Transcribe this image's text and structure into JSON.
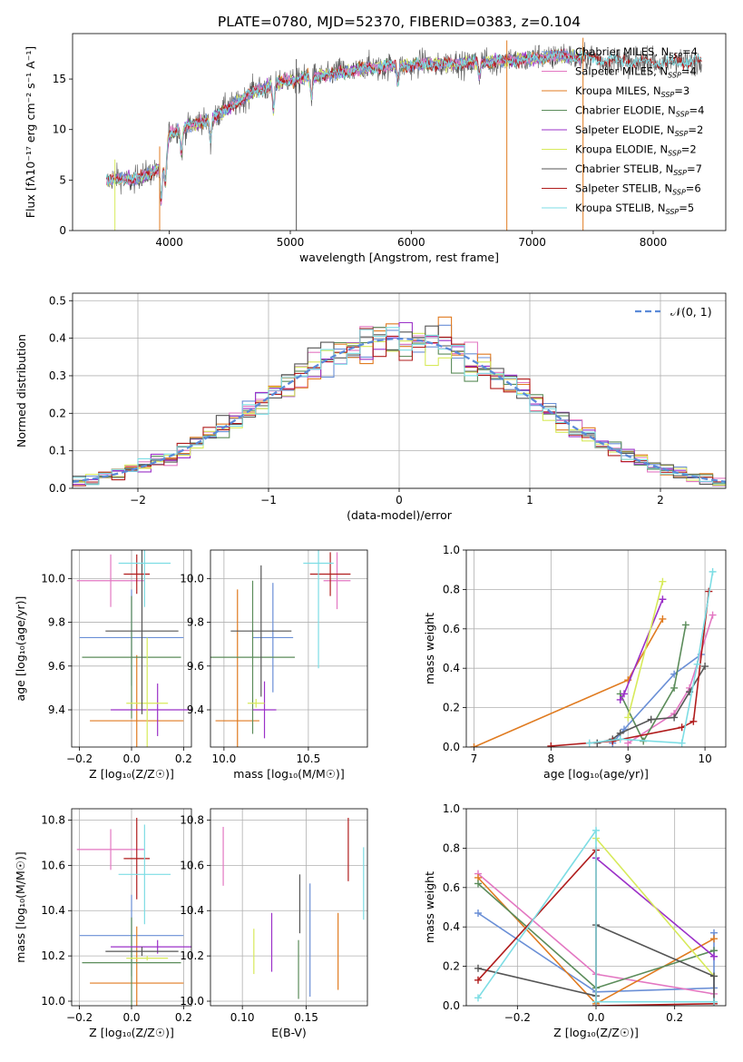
{
  "figure_title": "PLATE=0780, MJD=52370, FIBERID=0383, z=0.104",
  "colors": {
    "Chabrier MILES": "#6a8fd6",
    "Salpeter MILES": "#e377c2",
    "Kroupa MILES": "#e07b20",
    "Chabrier ELODIE": "#5b8c5a",
    "Salpeter ELODIE": "#9b30c8",
    "Kroupa ELODIE": "#d7ea5a",
    "Chabrier STELIB": "#555555",
    "Salpeter STELIB": "#b01c1c",
    "Kroupa STELIB": "#7ddde4"
  },
  "chart_data": [
    {
      "id": "spectrum",
      "type": "line",
      "xlabel": "wavelength [Angstrom, rest frame]",
      "ylabel": "Flux [fλ10⁻¹⁷ erg cm⁻² s⁻¹ A⁻¹]",
      "xlim": [
        3200,
        8600
      ],
      "ylim": [
        0,
        19.5
      ],
      "xticks": [
        4000,
        5000,
        6000,
        7000,
        8000
      ],
      "yticks": [
        0,
        5,
        10,
        15
      ],
      "grid": false,
      "legend_position": "top-right",
      "legend": [
        {
          "model": "Chabrier MILES",
          "label": "Chabrier MILES, N",
          "sub": "SSP",
          "tail": "=4"
        },
        {
          "model": "Salpeter MILES",
          "label": "Salpeter MILES, N",
          "sub": "SSP",
          "tail": "=4"
        },
        {
          "model": "Kroupa MILES",
          "label": "Kroupa MILES, N",
          "sub": "SSP",
          "tail": "=3"
        },
        {
          "model": "Chabrier ELODIE",
          "label": "Chabrier ELODIE, N",
          "sub": "SSP",
          "tail": "=4"
        },
        {
          "model": "Salpeter ELODIE",
          "label": "Salpeter ELODIE, N",
          "sub": "SSP",
          "tail": "=2"
        },
        {
          "model": "Kroupa ELODIE",
          "label": "Kroupa ELODIE, N",
          "sub": "SSP",
          "tail": "=2"
        },
        {
          "model": "Chabrier STELIB",
          "label": "Chabrier STELIB, N",
          "sub": "SSP",
          "tail": "=7"
        },
        {
          "model": "Salpeter STELIB",
          "label": "Salpeter STELIB, N",
          "sub": "SSP",
          "tail": "=6"
        },
        {
          "model": "Kroupa STELIB",
          "label": "Kroupa STELIB, N",
          "sub": "SSP",
          "tail": "=5"
        }
      ],
      "continuum_nodes": [
        [
          3480,
          4.8
        ],
        [
          3600,
          5.2
        ],
        [
          3700,
          5.0
        ],
        [
          3800,
          5.4
        ],
        [
          3900,
          6.2
        ],
        [
          3950,
          6.5
        ],
        [
          4000,
          9.5
        ],
        [
          4100,
          10.2
        ],
        [
          4300,
          10.8
        ],
        [
          4500,
          12.2
        ],
        [
          4700,
          13.8
        ],
        [
          4900,
          14.6
        ],
        [
          5100,
          15.1
        ],
        [
          5400,
          15.6
        ],
        [
          5700,
          16.2
        ],
        [
          6000,
          16.4
        ],
        [
          6300,
          16.5
        ],
        [
          6600,
          16.7
        ],
        [
          6900,
          16.9
        ],
        [
          7200,
          17.3
        ],
        [
          7500,
          17.0
        ],
        [
          7800,
          16.7
        ],
        [
          8100,
          16.6
        ],
        [
          8400,
          16.8
        ]
      ],
      "absorption_lines": [
        {
          "x": 3933,
          "depth": 3.5
        },
        {
          "x": 3968,
          "depth": 3.0
        },
        {
          "x": 4101,
          "depth": 2.5
        },
        {
          "x": 4340,
          "depth": 2.0
        },
        {
          "x": 4861,
          "depth": 2.5
        },
        {
          "x": 5175,
          "depth": 2.0
        },
        {
          "x": 5890,
          "depth": 1.8
        },
        {
          "x": 6563,
          "depth": 1.5
        },
        {
          "x": 8542,
          "depth": 1.5
        }
      ],
      "spikes": [
        {
          "x": 3550,
          "series": "Kroupa ELODIE"
        },
        {
          "x": 3920,
          "series": "Kroupa MILES"
        },
        {
          "x": 5050,
          "series": "Chabrier STELIB"
        },
        {
          "x": 6790,
          "series": "Kroupa MILES"
        },
        {
          "x": 7420,
          "series": "Kroupa MILES"
        }
      ]
    },
    {
      "id": "residuals",
      "type": "histogram",
      "xlabel": "(data-model)/error",
      "ylabel": "Normed distribution",
      "xlim": [
        -2.5,
        2.5
      ],
      "ylim": [
        0,
        0.52
      ],
      "xticks": [
        -2,
        -1,
        0,
        1,
        2
      ],
      "yticks": [
        0.0,
        0.1,
        0.2,
        0.3,
        0.4,
        0.5
      ],
      "grid": true,
      "legend_position": "top-right",
      "reference_label": "𝒩(0, 1)",
      "reference_color": "#5b8ad8",
      "bin_width": 0.1
    },
    {
      "id": "age-vs-Z",
      "type": "errorbar",
      "xlabel": "Z [log₁₀(Z/Z☉)]",
      "ylabel": "age  [log₁₀(age/yr)]",
      "xlim": [
        -0.23,
        0.23
      ],
      "ylim": [
        9.23,
        10.13
      ],
      "xticks": [
        -0.2,
        0.0,
        0.2
      ],
      "yticks": [
        9.4,
        9.6,
        9.8,
        10.0
      ],
      "grid": true,
      "points": [
        {
          "series": "Chabrier MILES",
          "x": 0.0,
          "xerr": 0.2,
          "y": 9.73,
          "yerr": 0.22
        },
        {
          "series": "Salpeter MILES",
          "x": -0.08,
          "xerr": 0.13,
          "y": 9.99,
          "yerr": 0.12
        },
        {
          "series": "Kroupa MILES",
          "x": 0.02,
          "xerr": 0.18,
          "y": 9.35,
          "yerr": 0.3
        },
        {
          "series": "Chabrier ELODIE",
          "x": 0.0,
          "xerr": 0.19,
          "y": 9.64,
          "yerr": 0.28
        },
        {
          "series": "Salpeter ELODIE",
          "x": 0.1,
          "xerr": 0.18,
          "y": 9.4,
          "yerr": 0.12
        },
        {
          "series": "Kroupa ELODIE",
          "x": 0.06,
          "xerr": 0.08,
          "y": 9.43,
          "yerr": 0.3
        },
        {
          "series": "Chabrier STELIB",
          "x": 0.04,
          "xerr": 0.14,
          "y": 9.76,
          "yerr": 0.38
        },
        {
          "series": "Salpeter STELIB",
          "x": 0.02,
          "xerr": 0.05,
          "y": 10.02,
          "yerr": 0.09
        },
        {
          "series": "Kroupa STELIB",
          "x": 0.05,
          "xerr": 0.1,
          "y": 10.07,
          "yerr": 0.2
        }
      ]
    },
    {
      "id": "age-vs-mass",
      "type": "errorbar",
      "xlabel": "mass [log₁₀(M/M☉)]",
      "ylabel": "",
      "xlim": [
        9.92,
        10.85
      ],
      "ylim": [
        9.23,
        10.13
      ],
      "xticks": [
        10.0,
        10.5
      ],
      "yticks": [
        9.4,
        9.6,
        9.8,
        10.0
      ],
      "grid": true,
      "points": [
        {
          "series": "Chabrier MILES",
          "x": 10.29,
          "xerr": 0.12,
          "y": 9.73,
          "yerr": 0.25
        },
        {
          "series": "Salpeter MILES",
          "x": 10.67,
          "xerr": 0.08,
          "y": 9.99,
          "yerr": 0.13
        },
        {
          "series": "Kroupa MILES",
          "x": 10.08,
          "xerr": 0.13,
          "y": 9.35,
          "yerr": 0.6
        },
        {
          "series": "Chabrier ELODIE",
          "x": 10.17,
          "xerr": 0.25,
          "y": 9.64,
          "yerr": 0.35
        },
        {
          "series": "Salpeter ELODIE",
          "x": 10.24,
          "xerr": 0.07,
          "y": 9.4,
          "yerr": 0.13
        },
        {
          "series": "Kroupa ELODIE",
          "x": 10.19,
          "xerr": 0.05,
          "y": 9.43,
          "yerr": 0.02
        },
        {
          "series": "Chabrier STELIB",
          "x": 10.22,
          "xerr": 0.18,
          "y": 9.76,
          "yerr": 0.3
        },
        {
          "series": "Salpeter STELIB",
          "x": 10.63,
          "xerr": 0.12,
          "y": 10.02,
          "yerr": 0.1
        },
        {
          "series": "Kroupa STELIB",
          "x": 10.56,
          "xerr": 0.09,
          "y": 10.07,
          "yerr": 0.48
        }
      ]
    },
    {
      "id": "weight-vs-age",
      "type": "line",
      "xlabel": "age  [log₁₀(age/yr)]",
      "ylabel": "mass weight",
      "xlim": [
        6.9,
        10.27
      ],
      "ylim": [
        0,
        1.0
      ],
      "xticks": [
        7,
        8,
        9,
        10
      ],
      "yticks": [
        0.0,
        0.2,
        0.4,
        0.6,
        0.8,
        1.0
      ],
      "grid": true,
      "series": [
        {
          "name": "Chabrier MILES",
          "points": [
            [
              8.8,
              0.02
            ],
            [
              8.95,
              0.09
            ],
            [
              9.6,
              0.37
            ],
            [
              9.95,
              0.47
            ]
          ]
        },
        {
          "name": "Salpeter MILES",
          "points": [
            [
              9.0,
              0.02
            ],
            [
              9.6,
              0.17
            ],
            [
              9.8,
              0.3
            ],
            [
              10.1,
              0.67
            ]
          ]
        },
        {
          "name": "Kroupa MILES",
          "points": [
            [
              7.0,
              0.0
            ],
            [
              9.0,
              0.34
            ],
            [
              9.45,
              0.65
            ]
          ]
        },
        {
          "name": "Chabrier ELODIE",
          "points": [
            [
              8.9,
              0.27
            ],
            [
              9.2,
              0.03
            ],
            [
              9.6,
              0.3
            ],
            [
              9.75,
              0.62
            ]
          ]
        },
        {
          "name": "Salpeter ELODIE",
          "points": [
            [
              8.9,
              0.24
            ],
            [
              8.95,
              0.27
            ],
            [
              9.45,
              0.75
            ]
          ]
        },
        {
          "name": "Kroupa ELODIE",
          "points": [
            [
              9.0,
              0.15
            ],
            [
              9.45,
              0.84
            ]
          ]
        },
        {
          "name": "Chabrier STELIB",
          "points": [
            [
              8.6,
              0.02
            ],
            [
              8.8,
              0.04
            ],
            [
              8.9,
              0.07
            ],
            [
              9.3,
              0.14
            ],
            [
              9.6,
              0.15
            ],
            [
              9.8,
              0.28
            ],
            [
              10.0,
              0.41
            ]
          ]
        },
        {
          "name": "Salpeter STELIB",
          "points": [
            [
              8.0,
              0.005
            ],
            [
              8.8,
              0.03
            ],
            [
              9.7,
              0.1
            ],
            [
              9.85,
              0.13
            ],
            [
              10.05,
              0.79
            ]
          ]
        },
        {
          "name": "Kroupa STELIB",
          "points": [
            [
              8.5,
              0.02
            ],
            [
              8.9,
              0.04
            ],
            [
              9.7,
              0.02
            ],
            [
              9.9,
              0.42
            ],
            [
              10.1,
              0.89
            ]
          ]
        }
      ]
    },
    {
      "id": "mass-vs-Z",
      "type": "errorbar",
      "xlabel": "Z [log₁₀(Z/Z☉)]",
      "ylabel": "mass [log₁₀(M/M☉)]",
      "xlim": [
        -0.23,
        0.23
      ],
      "ylim": [
        9.98,
        10.85
      ],
      "xticks": [
        -0.2,
        0.0,
        0.2
      ],
      "yticks": [
        10.0,
        10.2,
        10.4,
        10.6,
        10.8
      ],
      "grid": true,
      "points": [
        {
          "series": "Chabrier MILES",
          "x": 0.0,
          "xerr": 0.2,
          "y": 10.29,
          "yerr": 0.18
        },
        {
          "series": "Salpeter MILES",
          "x": -0.08,
          "xerr": 0.13,
          "y": 10.67,
          "yerr": 0.09
        },
        {
          "series": "Kroupa MILES",
          "x": 0.02,
          "xerr": 0.18,
          "y": 10.08,
          "yerr": 0.25
        },
        {
          "series": "Chabrier ELODIE",
          "x": 0.0,
          "xerr": 0.19,
          "y": 10.17,
          "yerr": 0.2
        },
        {
          "series": "Salpeter ELODIE",
          "x": 0.1,
          "xerr": 0.18,
          "y": 10.24,
          "yerr": 0.03
        },
        {
          "series": "Kroupa ELODIE",
          "x": 0.06,
          "xerr": 0.08,
          "y": 10.19,
          "yerr": 0.01
        },
        {
          "series": "Chabrier STELIB",
          "x": 0.04,
          "xerr": 0.14,
          "y": 10.22,
          "yerr": 0.02
        },
        {
          "series": "Salpeter STELIB",
          "x": 0.02,
          "xerr": 0.05,
          "y": 10.63,
          "yerr": 0.18
        },
        {
          "series": "Kroupa STELIB",
          "x": 0.05,
          "xerr": 0.1,
          "y": 10.56,
          "yerr": 0.22
        }
      ]
    },
    {
      "id": "mass-vs-ebv",
      "type": "errorbar",
      "xlabel": "E(B-V)",
      "ylabel": "",
      "xlim": [
        0.075,
        0.198
      ],
      "ylim": [
        9.98,
        10.85
      ],
      "xticks": [
        0.1,
        0.15
      ],
      "yticks": [
        10.0,
        10.2,
        10.4,
        10.6,
        10.8
      ],
      "grid": true,
      "points": [
        {
          "series": "Chabrier MILES",
          "x": 0.153,
          "xerr": 0,
          "y": 10.27,
          "yerr": 0.25
        },
        {
          "series": "Salpeter MILES",
          "x": 0.085,
          "xerr": 0,
          "y": 10.64,
          "yerr": 0.13
        },
        {
          "series": "Kroupa MILES",
          "x": 0.175,
          "xerr": 0,
          "y": 10.22,
          "yerr": 0.17
        },
        {
          "series": "Chabrier ELODIE",
          "x": 0.144,
          "xerr": 0,
          "y": 10.14,
          "yerr": 0.13
        },
        {
          "series": "Salpeter ELODIE",
          "x": 0.123,
          "xerr": 0,
          "y": 10.26,
          "yerr": 0.13
        },
        {
          "series": "Kroupa ELODIE",
          "x": 0.109,
          "xerr": 0,
          "y": 10.22,
          "yerr": 0.1
        },
        {
          "series": "Chabrier STELIB",
          "x": 0.145,
          "xerr": 0,
          "y": 10.43,
          "yerr": 0.13
        },
        {
          "series": "Salpeter STELIB",
          "x": 0.183,
          "xerr": 0,
          "y": 10.67,
          "yerr": 0.14
        },
        {
          "series": "Kroupa STELIB",
          "x": 0.195,
          "xerr": 0,
          "y": 10.52,
          "yerr": 0.16
        }
      ]
    },
    {
      "id": "weight-vs-Z",
      "type": "line",
      "xlabel": "Z [log₁₀(Z/Z☉)]",
      "ylabel": "mass weight",
      "xlim": [
        -0.33,
        0.33
      ],
      "ylim": [
        0,
        1.0
      ],
      "xticks": [
        -0.2,
        0.0,
        0.2
      ],
      "yticks": [
        0.0,
        0.2,
        0.4,
        0.6,
        0.8,
        1.0
      ],
      "grid": true,
      "series": [
        {
          "name": "Chabrier MILES",
          "points": [
            [
              -0.3,
              0.47
            ],
            [
              0.0,
              0.07
            ],
            [
              0.3,
              0.09
            ],
            [
              0.3,
              0.37
            ]
          ]
        },
        {
          "name": "Salpeter MILES",
          "points": [
            [
              -0.3,
              0.67
            ],
            [
              0.0,
              0.16
            ],
            [
              0.3,
              0.06
            ]
          ]
        },
        {
          "name": "Kroupa MILES",
          "points": [
            [
              -0.3,
              0.65
            ],
            [
              0.0,
              0.01
            ],
            [
              0.3,
              0.34
            ]
          ]
        },
        {
          "name": "Chabrier ELODIE",
          "points": [
            [
              -0.3,
              0.62
            ],
            [
              0.0,
              0.09
            ],
            [
              0.3,
              0.28
            ]
          ]
        },
        {
          "name": "Salpeter ELODIE",
          "points": [
            [
              0.0,
              0.75
            ],
            [
              0.3,
              0.25
            ]
          ]
        },
        {
          "name": "Kroupa ELODIE",
          "points": [
            [
              0.0,
              0.85
            ],
            [
              0.3,
              0.15
            ]
          ]
        },
        {
          "name": "Chabrier STELIB",
          "points": [
            [
              -0.3,
              0.19
            ],
            [
              0.0,
              0.05
            ],
            [
              0.0,
              0.41
            ],
            [
              0.3,
              0.15
            ],
            [
              0.3,
              0.02
            ]
          ]
        },
        {
          "name": "Salpeter STELIB",
          "points": [
            [
              -0.3,
              0.13
            ],
            [
              0.0,
              0.79
            ],
            [
              0.0,
              0.0
            ],
            [
              0.3,
              0.01
            ]
          ]
        },
        {
          "name": "Kroupa STELIB",
          "points": [
            [
              -0.3,
              0.04
            ],
            [
              0.0,
              0.89
            ],
            [
              0.0,
              0.02
            ],
            [
              0.3,
              0.02
            ]
          ]
        }
      ]
    }
  ]
}
